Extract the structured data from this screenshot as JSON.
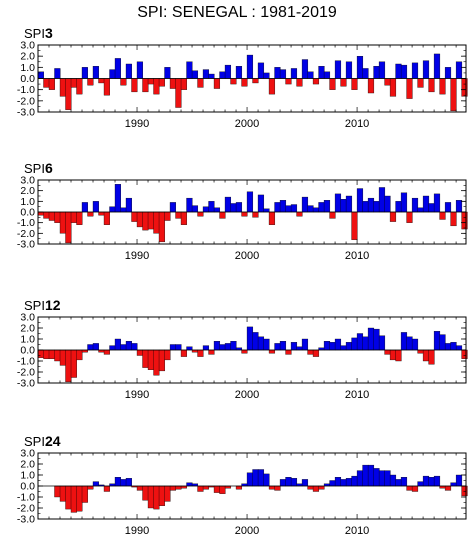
{
  "figure": {
    "title": "SPI:  SENEGAL : 1981-2019"
  },
  "colors": {
    "positive": "#0000e6",
    "negative": "#ee1111",
    "outline": "#000000"
  },
  "chart_data": [
    {
      "type": "area",
      "label_prefix": "SPI",
      "label_suffix": "3",
      "xlim": [
        1981,
        2019.9
      ],
      "ylim": [
        -3.0,
        3.0
      ],
      "yticks": [
        "3.0",
        "2.0",
        "1.0",
        "0.0",
        "-1.0",
        "-2.0",
        "-3.0"
      ],
      "xticks": [
        "1990",
        "2000",
        "2010"
      ],
      "grid": false,
      "x": [
        1981.0,
        1981.5,
        1982.0,
        1982.5,
        1983.0,
        1983.5,
        1984.0,
        1984.5,
        1985.0,
        1985.5,
        1986.0,
        1986.5,
        1987.0,
        1987.5,
        1988.0,
        1988.5,
        1989.0,
        1989.5,
        1990.0,
        1990.5,
        1991.0,
        1991.5,
        1992.0,
        1992.5,
        1993.0,
        1993.5,
        1994.0,
        1994.5,
        1995.0,
        1995.5,
        1996.0,
        1996.5,
        1997.0,
        1997.5,
        1998.0,
        1998.5,
        1999.0,
        1999.5,
        2000.0,
        2000.5,
        2001.0,
        2001.5,
        2002.0,
        2002.5,
        2003.0,
        2003.5,
        2004.0,
        2004.5,
        2005.0,
        2005.5,
        2006.0,
        2006.5,
        2007.0,
        2007.5,
        2008.0,
        2008.5,
        2009.0,
        2009.5,
        2010.0,
        2010.5,
        2011.0,
        2011.5,
        2012.0,
        2012.5,
        2013.0,
        2013.5,
        2014.0,
        2014.5,
        2015.0,
        2015.5,
        2016.0,
        2016.5,
        2017.0,
        2017.5,
        2018.0,
        2018.5,
        2019.0,
        2019.5
      ],
      "values": [
        0.6,
        -0.8,
        -1.0,
        0.9,
        -1.6,
        -2.8,
        -0.8,
        -1.4,
        1.0,
        -0.6,
        1.1,
        -0.4,
        -1.5,
        0.8,
        1.8,
        -0.6,
        1.3,
        -1.2,
        1.5,
        -1.2,
        -0.5,
        -1.4,
        -0.7,
        1.0,
        -0.9,
        -2.6,
        -1.0,
        1.5,
        0.7,
        -0.8,
        0.8,
        0.4,
        -0.9,
        0.6,
        1.2,
        -0.5,
        1.1,
        -0.7,
        2.1,
        -0.4,
        1.4,
        0.5,
        -1.4,
        1.0,
        0.8,
        -0.5,
        0.9,
        -0.7,
        1.7,
        0.6,
        -0.5,
        1.1,
        0.6,
        -1.0,
        1.6,
        -0.7,
        1.5,
        -1.0,
        2.0,
        0.9,
        -1.3,
        1.1,
        1.5,
        -0.6,
        -1.6,
        1.3,
        1.2,
        -1.8,
        1.4,
        -0.8,
        1.6,
        -1.2,
        2.2,
        -1.4,
        1.0,
        -2.9,
        1.5,
        -1.6
      ]
    },
    {
      "type": "area",
      "label_prefix": "SPI",
      "label_suffix": "6",
      "xlim": [
        1981,
        2019.9
      ],
      "ylim": [
        -3.0,
        3.0
      ],
      "yticks": [
        "3.0",
        "2.0",
        "1.0",
        "0.0",
        "-1.0",
        "-2.0",
        "-3.0"
      ],
      "xticks": [
        "1990",
        "2000",
        "2010"
      ],
      "grid": false,
      "x": [
        1981.0,
        1981.5,
        1982.0,
        1982.5,
        1983.0,
        1983.5,
        1984.0,
        1984.5,
        1985.0,
        1985.5,
        1986.0,
        1986.5,
        1987.0,
        1987.5,
        1988.0,
        1988.5,
        1989.0,
        1989.5,
        1990.0,
        1990.5,
        1991.0,
        1991.5,
        1992.0,
        1992.5,
        1993.0,
        1993.5,
        1994.0,
        1994.5,
        1995.0,
        1995.5,
        1996.0,
        1996.5,
        1997.0,
        1997.5,
        1998.0,
        1998.5,
        1999.0,
        1999.5,
        2000.0,
        2000.5,
        2001.0,
        2001.5,
        2002.0,
        2002.5,
        2003.0,
        2003.5,
        2004.0,
        2004.5,
        2005.0,
        2005.5,
        2006.0,
        2006.5,
        2007.0,
        2007.5,
        2008.0,
        2008.5,
        2009.0,
        2009.5,
        2010.0,
        2010.5,
        2011.0,
        2011.5,
        2012.0,
        2012.5,
        2013.0,
        2013.5,
        2014.0,
        2014.5,
        2015.0,
        2015.5,
        2016.0,
        2016.5,
        2017.0,
        2017.5,
        2018.0,
        2018.5,
        2019.0,
        2019.5
      ],
      "values": [
        -0.3,
        -0.6,
        -0.8,
        -1.0,
        -2.0,
        -2.9,
        -1.0,
        -1.2,
        0.9,
        -0.4,
        1.0,
        -0.3,
        -1.2,
        0.5,
        2.6,
        0.4,
        1.3,
        -0.9,
        -1.4,
        -1.7,
        -1.6,
        -2.0,
        -2.8,
        -0.8,
        0.9,
        -0.6,
        -1.2,
        1.3,
        0.6,
        -0.4,
        0.5,
        1.0,
        0.4,
        -0.6,
        1.4,
        0.8,
        0.9,
        -0.4,
        1.9,
        -0.5,
        1.6,
        0.3,
        -1.2,
        0.9,
        1.1,
        0.6,
        0.7,
        -0.4,
        1.4,
        0.6,
        0.4,
        0.9,
        1.1,
        -0.6,
        1.7,
        1.2,
        1.5,
        -2.6,
        2.2,
        1.0,
        1.3,
        1.0,
        2.3,
        1.5,
        -0.9,
        1.0,
        1.8,
        -1.0,
        1.3,
        0.4,
        1.5,
        0.8,
        1.7,
        -0.7,
        0.9,
        -1.3,
        1.1,
        -1.6
      ]
    },
    {
      "type": "area",
      "label_prefix": "SPI",
      "label_suffix": "12",
      "xlim": [
        1981,
        2019.9
      ],
      "ylim": [
        -3.0,
        3.0
      ],
      "yticks": [
        "3.0",
        "2.0",
        "1.0",
        "0.0",
        "-1.0",
        "-2.0",
        "-3.0"
      ],
      "xticks": [
        "1990",
        "2000",
        "2010"
      ],
      "grid": false,
      "x": [
        1981.0,
        1981.5,
        1982.0,
        1982.5,
        1983.0,
        1983.5,
        1984.0,
        1984.5,
        1985.0,
        1985.5,
        1986.0,
        1986.5,
        1987.0,
        1987.5,
        1988.0,
        1988.5,
        1989.0,
        1989.5,
        1990.0,
        1990.5,
        1991.0,
        1991.5,
        1992.0,
        1992.5,
        1993.0,
        1993.5,
        1994.0,
        1994.5,
        1995.0,
        1995.5,
        1996.0,
        1996.5,
        1997.0,
        1997.5,
        1998.0,
        1998.5,
        1999.0,
        1999.5,
        2000.0,
        2000.5,
        2001.0,
        2001.5,
        2002.0,
        2002.5,
        2003.0,
        2003.5,
        2004.0,
        2004.5,
        2005.0,
        2005.5,
        2006.0,
        2006.5,
        2007.0,
        2007.5,
        2008.0,
        2008.5,
        2009.0,
        2009.5,
        2010.0,
        2010.5,
        2011.0,
        2011.5,
        2012.0,
        2012.5,
        2013.0,
        2013.5,
        2014.0,
        2014.5,
        2015.0,
        2015.5,
        2016.0,
        2016.5,
        2017.0,
        2017.5,
        2018.0,
        2018.5,
        2019.0,
        2019.5
      ],
      "values": [
        -0.7,
        -0.8,
        -0.8,
        -1.0,
        -1.4,
        -2.9,
        -2.5,
        -0.9,
        -0.2,
        0.5,
        0.6,
        -0.2,
        -0.4,
        0.4,
        1.0,
        0.5,
        0.8,
        0.6,
        -0.5,
        -1.6,
        -1.8,
        -2.3,
        -1.9,
        -0.9,
        0.5,
        0.5,
        -0.6,
        0.3,
        -0.2,
        -0.6,
        0.4,
        -0.4,
        0.8,
        0.5,
        0.6,
        0.8,
        0.2,
        -0.3,
        2.1,
        1.6,
        1.2,
        1.0,
        -0.3,
        0.6,
        0.8,
        -0.4,
        0.7,
        0.3,
        1.0,
        -0.4,
        -0.6,
        0.2,
        0.8,
        0.7,
        1.0,
        0.4,
        0.7,
        1.1,
        1.5,
        1.2,
        2.0,
        1.9,
        1.3,
        -0.4,
        -0.9,
        -1.0,
        1.6,
        1.2,
        1.0,
        -0.3,
        -1.0,
        -1.3,
        1.7,
        1.4,
        0.6,
        0.7,
        0.4,
        -0.8
      ]
    },
    {
      "type": "area",
      "label_prefix": "SPI",
      "label_suffix": "24",
      "xlim": [
        1981,
        2019.9
      ],
      "ylim": [
        -3.0,
        3.0
      ],
      "yticks": [
        "3.0",
        "2.0",
        "1.0",
        "0.0",
        "-1.0",
        "-2.0",
        "-3.0"
      ],
      "xticks": [
        "1990",
        "2000",
        "2010"
      ],
      "grid": false,
      "x": [
        1981.0,
        1981.5,
        1982.0,
        1982.5,
        1983.0,
        1983.5,
        1984.0,
        1984.5,
        1985.0,
        1985.5,
        1986.0,
        1986.5,
        1987.0,
        1987.5,
        1988.0,
        1988.5,
        1989.0,
        1989.5,
        1990.0,
        1990.5,
        1991.0,
        1991.5,
        1992.0,
        1992.5,
        1993.0,
        1993.5,
        1994.0,
        1994.5,
        1995.0,
        1995.5,
        1996.0,
        1996.5,
        1997.0,
        1997.5,
        1998.0,
        1998.5,
        1999.0,
        1999.5,
        2000.0,
        2000.5,
        2001.0,
        2001.5,
        2002.0,
        2002.5,
        2003.0,
        2003.5,
        2004.0,
        2004.5,
        2005.0,
        2005.5,
        2006.0,
        2006.5,
        2007.0,
        2007.5,
        2008.0,
        2008.5,
        2009.0,
        2009.5,
        2010.0,
        2010.5,
        2011.0,
        2011.5,
        2012.0,
        2012.5,
        2013.0,
        2013.5,
        2014.0,
        2014.5,
        2015.0,
        2015.5,
        2016.0,
        2016.5,
        2017.0,
        2017.5,
        2018.0,
        2018.5,
        2019.0,
        2019.5
      ],
      "values": [
        0.0,
        0.0,
        0.0,
        -1.0,
        -1.4,
        -2.1,
        -2.4,
        -2.3,
        -1.5,
        -0.3,
        0.4,
        0.1,
        -0.5,
        0.2,
        0.8,
        0.6,
        0.7,
        -0.1,
        -0.4,
        -1.3,
        -2.0,
        -2.1,
        -1.8,
        -1.4,
        -0.4,
        -0.3,
        -0.2,
        0.3,
        0.2,
        -0.5,
        -0.3,
        -0.1,
        -0.6,
        -0.7,
        -0.2,
        0.0,
        -0.3,
        0.2,
        1.2,
        1.5,
        1.5,
        1.1,
        -0.3,
        -0.4,
        0.6,
        0.8,
        0.7,
        0.2,
        0.6,
        -0.3,
        -0.5,
        -0.3,
        0.2,
        0.5,
        0.8,
        0.6,
        0.7,
        0.9,
        1.4,
        1.9,
        1.9,
        1.6,
        1.4,
        1.4,
        1.0,
        0.6,
        0.8,
        -0.4,
        -0.5,
        0.4,
        0.9,
        0.8,
        0.9,
        -0.2,
        -0.4,
        0.3,
        1.0,
        -0.9
      ]
    }
  ]
}
